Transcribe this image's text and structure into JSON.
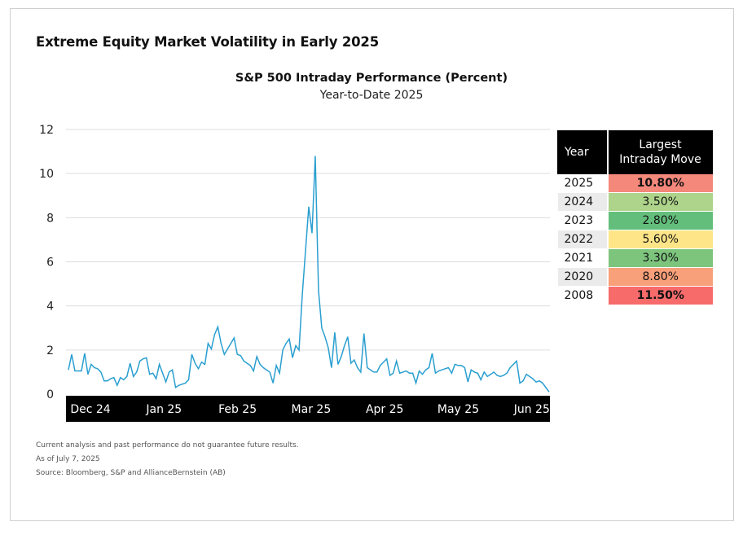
{
  "main_title": "Extreme Equity Market Volatility in Early 2025",
  "chart_data": {
    "type": "line",
    "title": "S&P 500 Intraday Performance (Percent)",
    "subtitle": "Year-to-Date 2025",
    "xlabel": "",
    "ylabel": "",
    "ylim": [
      0,
      12
    ],
    "yticks": [
      0,
      2,
      4,
      6,
      8,
      10,
      12
    ],
    "xticks": [
      "Dec 24",
      "Jan 25",
      "Feb 25",
      "Mar 25",
      "Apr 25",
      "May 25",
      "Jun 25"
    ],
    "grid": true,
    "line_color": "#2a9fd0",
    "series": [
      {
        "values": [
          1.1,
          1.8,
          1.05,
          1.05,
          1.05,
          1.85,
          0.9,
          1.35,
          1.2,
          1.15,
          1.0,
          0.6,
          0.6,
          0.7,
          0.75,
          0.4,
          0.75,
          0.65,
          0.8,
          1.4,
          0.8,
          1.0,
          1.5,
          1.6,
          1.65,
          0.9,
          0.95,
          0.7,
          1.35,
          0.95,
          0.55,
          1.0,
          1.1,
          0.3,
          0.4,
          0.45,
          0.5,
          0.65,
          1.8,
          1.4,
          1.15,
          1.45,
          1.35,
          2.3,
          2.05,
          2.7,
          3.05,
          2.3,
          1.8,
          2.05,
          2.3,
          2.55,
          1.8,
          1.75,
          1.5,
          1.4,
          1.3,
          1.05,
          1.7,
          1.35,
          1.2,
          1.1,
          1.0,
          0.5,
          1.3,
          0.95,
          2.0,
          2.3,
          2.5,
          1.65,
          2.2,
          2.0,
          4.5,
          6.5,
          8.5,
          7.3,
          10.8,
          4.7,
          3.0,
          2.6,
          2.1,
          1.2,
          2.8,
          1.35,
          1.7,
          2.2,
          2.6,
          1.4,
          1.55,
          1.2,
          1.0,
          2.75,
          1.2,
          1.1,
          1.0,
          1.0,
          1.3,
          1.45,
          1.6,
          0.85,
          0.95,
          1.5,
          0.95,
          1.0,
          1.05,
          0.95,
          0.95,
          0.5,
          1.05,
          0.9,
          1.1,
          1.2,
          1.85,
          0.95,
          1.05,
          1.1,
          1.15,
          1.2,
          0.95,
          1.35,
          1.3,
          1.3,
          1.2,
          0.55,
          1.1,
          1.0,
          0.95,
          0.65,
          1.0,
          0.8,
          0.9,
          1.0,
          0.85,
          0.8,
          0.85,
          0.95,
          1.2,
          1.35,
          1.5,
          0.5,
          0.6,
          0.9,
          0.8,
          0.7,
          0.55,
          0.6,
          0.5,
          0.3,
          0.1
        ]
      }
    ]
  },
  "table": {
    "headers": {
      "year": "Year",
      "move_line1": "Largest",
      "move_line2": "Intraday Move"
    },
    "rows": [
      {
        "year": "2025",
        "value": "10.80%",
        "color": "#f4887b",
        "bold": true
      },
      {
        "year": "2024",
        "value": "3.50%",
        "color": "#add48a",
        "bold": false
      },
      {
        "year": "2023",
        "value": "2.80%",
        "color": "#63be7b",
        "bold": false
      },
      {
        "year": "2022",
        "value": "5.60%",
        "color": "#fee588",
        "bold": false
      },
      {
        "year": "2021",
        "value": "3.30%",
        "color": "#7dc47d",
        "bold": false
      },
      {
        "year": "2020",
        "value": "8.80%",
        "color": "#f8a079",
        "bold": false
      },
      {
        "year": "2008",
        "value": "11.50%",
        "color": "#f86b6b",
        "bold": true
      }
    ],
    "year_colors": {
      "odd": "#ffffff",
      "even": "#ebebeb"
    }
  },
  "footer": {
    "line1": "Current analysis and past performance do not guarantee future results.",
    "line2": "As of July 7, 2025",
    "line3": "Source: Bloomberg, S&P and AllianceBernstein (AB)"
  }
}
